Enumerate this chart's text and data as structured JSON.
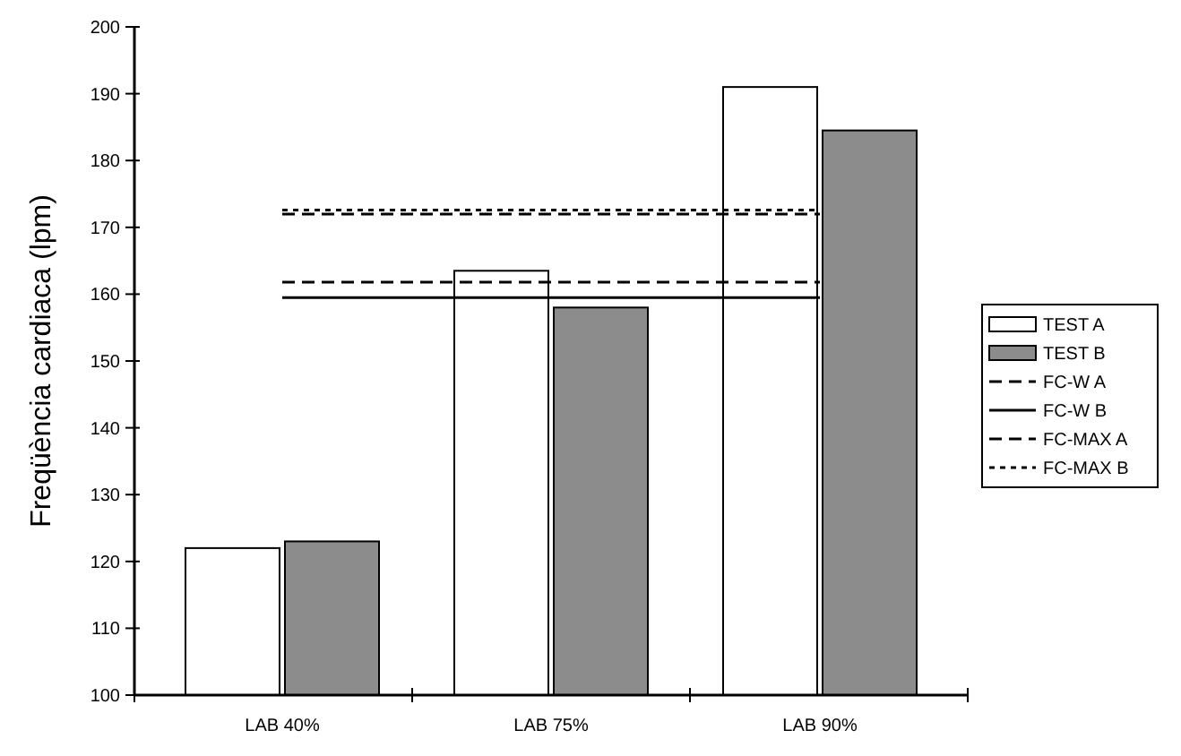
{
  "chart_data": {
    "type": "bar",
    "ylabel": "Freqüència cardiaca (lpm)",
    "categories": [
      "LAB 40%",
      "LAB 75%",
      "LAB 90%"
    ],
    "ylim": [
      100,
      200
    ],
    "yticks": [
      100,
      110,
      120,
      130,
      140,
      150,
      160,
      170,
      180,
      190,
      200
    ],
    "grid": false,
    "legend": "right",
    "series": [
      {
        "name": "TEST A",
        "color": "#ffffff",
        "values": [
          122,
          163.5,
          191
        ]
      },
      {
        "name": "TEST B",
        "color": "#8c8c8c",
        "values": [
          123,
          158,
          184.5
        ]
      },
      {
        "name": "FC-W A",
        "type": "line",
        "color": "#000000",
        "line_style": "dashed",
        "values": [
          161.8,
          161.8,
          161.8
        ]
      },
      {
        "name": "FC-W B",
        "type": "line",
        "color": "#000000",
        "line_style": "solid",
        "values": [
          159.5,
          159.5,
          159.5
        ]
      },
      {
        "name": "FC-MAX A",
        "type": "line",
        "color": "#000000",
        "line_style": "dashed",
        "values": [
          172,
          172,
          172
        ]
      },
      {
        "name": "FC-MAX B",
        "type": "line",
        "color": "#000000",
        "line_style": "dotted",
        "values": [
          172.6,
          172.6,
          172.6
        ]
      }
    ]
  }
}
